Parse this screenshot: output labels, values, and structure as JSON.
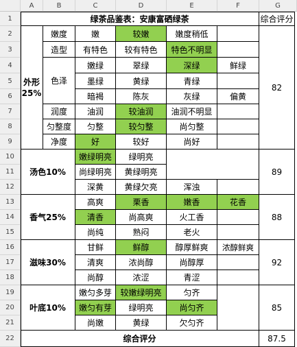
{
  "columns": [
    "A",
    "B",
    "C",
    "D",
    "E",
    "F",
    "G"
  ],
  "rows": [
    "1",
    "2",
    "3",
    "4",
    "5",
    "6",
    "7",
    "8",
    "9",
    "10",
    "11",
    "12",
    "13",
    "14",
    "15",
    "16",
    "17",
    "18",
    "19",
    "20",
    "21",
    "22"
  ],
  "title": "绿茶品鉴表：安康富硒绿茶",
  "score_header": "综合评分",
  "waixing": {
    "label": "外形\n25%",
    "nendu": {
      "label": "嫩度",
      "opts": [
        "嫩",
        "较嫩",
        "嫩度稍低"
      ]
    },
    "zaoxing": {
      "label": "造型",
      "opts": [
        "有特色",
        "较有特色",
        "特色不明显"
      ]
    },
    "sezhe": {
      "label": "色泽",
      "opts": [
        "嫩绿",
        "翠绿",
        "深绿",
        "鲜绿",
        "墨绿",
        "黄绿",
        "青绿",
        "暗褐",
        "陈灰",
        "灰绿",
        "偏黄"
      ]
    },
    "rundu": {
      "label": "润度",
      "opts": [
        "油润",
        "较油润",
        "油润不明显"
      ]
    },
    "yunzhengdu": {
      "label": "匀整度",
      "opts": [
        "匀整",
        "较匀整",
        "尚匀整"
      ]
    },
    "jingdu": {
      "label": "净度",
      "opts": [
        "好",
        "较好",
        "尚好"
      ]
    },
    "score": "82"
  },
  "tangse": {
    "label": "汤色10%",
    "opts": [
      "嫩绿明亮",
      "绿明亮",
      "尚绿明亮",
      "黄绿明亮",
      "深黄",
      "黄绿欠亮",
      "浑浊"
    ],
    "score": "89"
  },
  "xiangqi": {
    "label": "香气25%",
    "opts": [
      "高爽",
      "栗香",
      "嫩香",
      "花香",
      "清香",
      "尚高爽",
      "火工香",
      "尚纯",
      "熟闷",
      "老火"
    ],
    "score": "88"
  },
  "ziwei": {
    "label": "滋味30%",
    "opts": [
      "甘鲜",
      "鲜醇",
      "醇厚鲜爽",
      "浓醇鲜爽",
      "清爽",
      "浓尚醇",
      "尚醇厚",
      "尚醇",
      "浓涩",
      "青涩"
    ],
    "score": "92"
  },
  "yedi": {
    "label": "叶底10%",
    "opts": [
      "嫩匀多芽",
      "较嫩绿明亮",
      "匀齐",
      "嫩匀有芽",
      "绿明亮",
      "尚匀齐",
      "尚嫩",
      "黄绿",
      "欠匀齐"
    ],
    "score": "85"
  },
  "total": {
    "label": "综合评分",
    "score": "87.5"
  },
  "colors": {
    "highlight": "#92d050",
    "header_bg": "#efefef",
    "grid": "#000000"
  }
}
